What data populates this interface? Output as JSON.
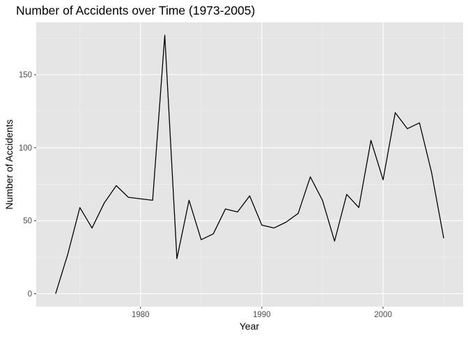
{
  "chart_data": {
    "type": "line",
    "title": "Number of Accidents over Time (1973-2005)",
    "xlabel": "Year",
    "ylabel": "Number of Accidents",
    "xlim": [
      1971.4,
      2006.6
    ],
    "ylim": [
      -8.85,
      185.85
    ],
    "x_ticks": [
      1980,
      1990,
      2000
    ],
    "x_minor_ticks": [
      1975,
      1985,
      1995,
      2005
    ],
    "y_ticks": [
      0,
      50,
      100,
      150
    ],
    "y_minor_ticks": [
      25,
      75,
      125,
      175
    ],
    "grid": true,
    "legend": "none",
    "colors": {
      "panel_background": "#e5e5e5",
      "grid_major": "#ffffff",
      "grid_minor": "#f2f2f2",
      "line": "#000000",
      "tick_label": "#4d4d4d",
      "tick_mark": "#333333"
    },
    "series": [
      {
        "x": [
          1973,
          1974,
          1975,
          1976,
          1977,
          1978,
          1979,
          1981,
          1982,
          1983,
          1984,
          1985,
          1986,
          1987,
          1988,
          1989,
          1990,
          1991,
          1992,
          1993,
          1994,
          1995,
          1996,
          1997,
          1998,
          1999,
          2000,
          2001,
          2002,
          2003,
          2004,
          2005
        ],
        "values": [
          0,
          27,
          59,
          45,
          62,
          74,
          66,
          64,
          177,
          24,
          64,
          37,
          41,
          58,
          56,
          67,
          47,
          45,
          49,
          55,
          80,
          64,
          36,
          68,
          59,
          105,
          78,
          124,
          113,
          117,
          83,
          38
        ]
      }
    ]
  }
}
